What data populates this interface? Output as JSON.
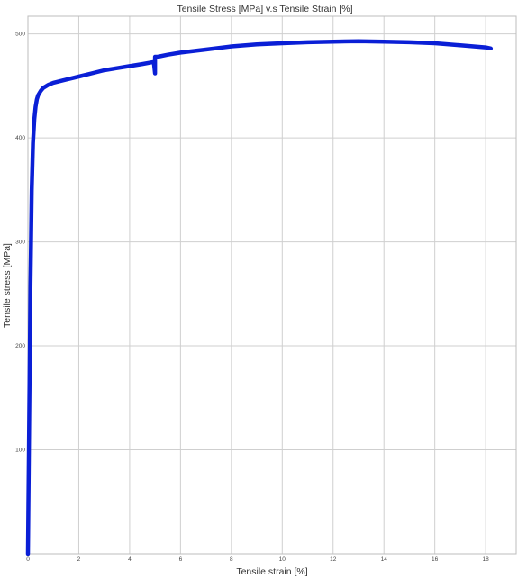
{
  "chart_data": {
    "type": "line",
    "title": "Tensile Stress [MPa] v.s Tensile Strain [%]",
    "xlabel": "Tensile strain [%]",
    "ylabel": "Tensile stress [MPa]",
    "xlim": [
      0,
      19.2
    ],
    "ylim": [
      0,
      517
    ],
    "x_ticks": [
      0,
      2,
      4,
      6,
      8,
      10,
      12,
      14,
      16,
      18
    ],
    "y_ticks": [
      100,
      200,
      300,
      400,
      500
    ],
    "grid": true,
    "legend": "none",
    "series_color": "#0a1fd6",
    "series": [
      {
        "x": [
          0,
          0.05,
          0.1,
          0.15,
          0.2,
          0.25,
          0.3,
          0.35,
          0.4,
          0.5,
          0.6,
          0.8,
          1.0,
          1.5,
          2.0,
          2.5,
          3.0,
          3.5,
          4.0,
          4.5,
          4.95,
          5.0,
          5.0,
          5.05,
          5.1,
          5.5,
          6.0,
          7.0,
          8.0,
          9.0,
          10.0,
          11.0,
          12.0,
          13.0,
          14.0,
          15.0,
          16.0,
          17.0,
          18.0,
          18.2
        ],
        "y": [
          0,
          130,
          260,
          350,
          395,
          418,
          430,
          437,
          441,
          445,
          448,
          451,
          453,
          456,
          459,
          462,
          465,
          467,
          469,
          471,
          473,
          462,
          478,
          478,
          478,
          480,
          482,
          485,
          488,
          490,
          491,
          492,
          492.5,
          493,
          492.5,
          492,
          491,
          489,
          487,
          486
        ]
      }
    ]
  }
}
